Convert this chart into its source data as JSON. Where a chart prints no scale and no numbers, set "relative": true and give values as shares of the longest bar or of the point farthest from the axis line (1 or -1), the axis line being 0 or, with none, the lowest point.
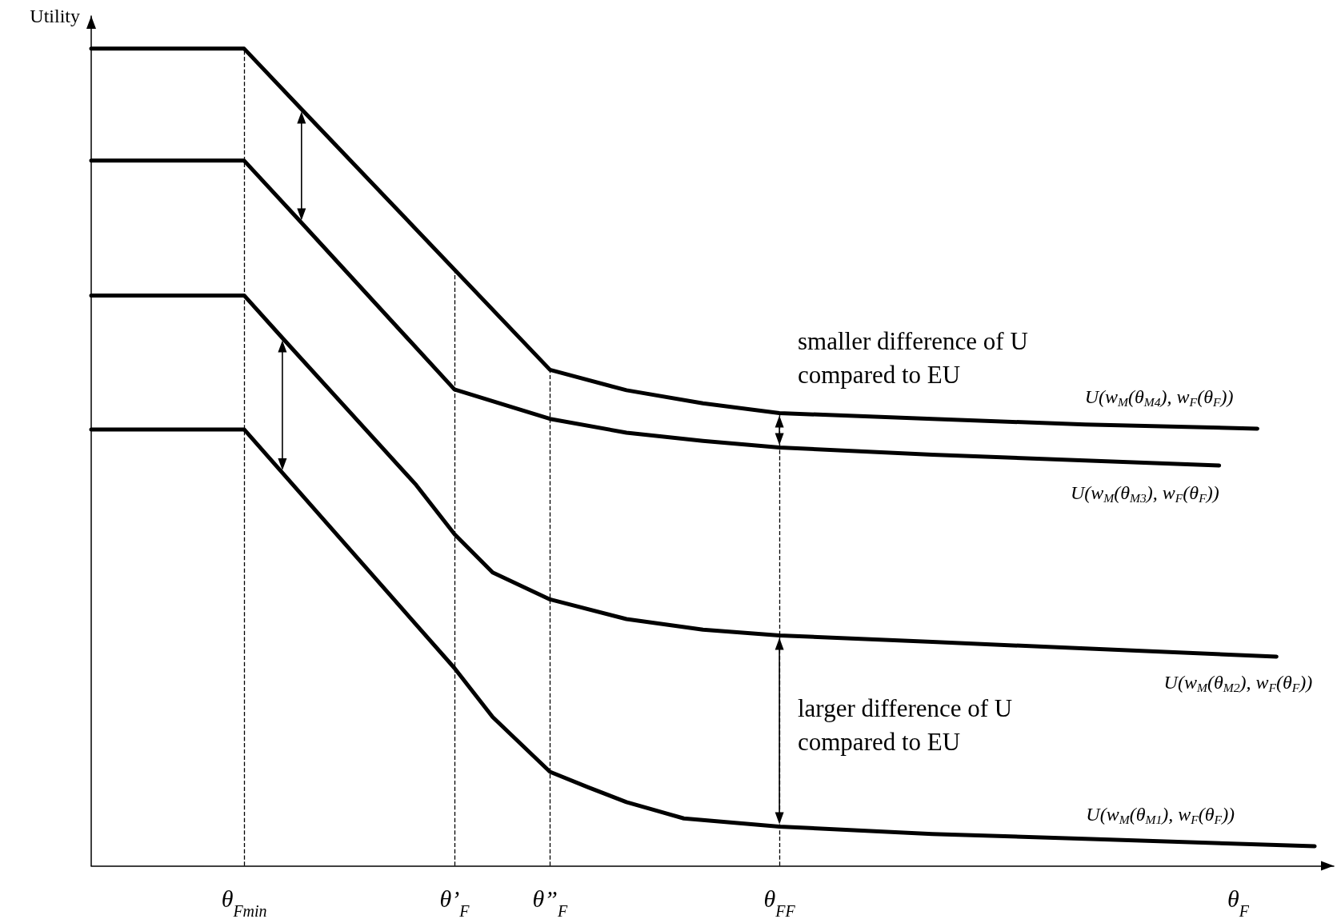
{
  "chart_data": {
    "type": "line",
    "relative": true,
    "ylabel": "Utility",
    "tick_labels": "x",
    "line_style": "solid",
    "categories": [
      null,
      null,
      null,
      null,
      null,
      null,
      null,
      null,
      "θ$_{Fmin}$",
      null,
      null,
      null,
      null,
      null,
      null,
      null,
      null,
      null,
      null,
      "θ’$_{F}$",
      null,
      null,
      null,
      null,
      "θ”$_{F}$",
      null,
      null,
      null,
      null,
      null,
      null,
      null,
      null,
      null,
      null,
      null,
      "θ$_{FF}$",
      null,
      null,
      null,
      null,
      null,
      null,
      null,
      null,
      null,
      null,
      null,
      null,
      null,
      null,
      null,
      null,
      null,
      null,
      null,
      null,
      null,
      null,
      null,
      "θ$_{F}$",
      null,
      null,
      null,
      null,
      null
    ],
    "series": [
      {
        "name": "U(w$_{M}$(θ$_{M4}$), w$_{F}$(θ$_{F}$))",
        "color": "#000000",
        "values": [
          1.0,
          null,
          null,
          null,
          null,
          null,
          null,
          null,
          1.0,
          null,
          null,
          0.926,
          null,
          null,
          null,
          null,
          null,
          null,
          null,
          null,
          null,
          null,
          null,
          null,
          0.607,
          null,
          null,
          null,
          0.582,
          null,
          null,
          null,
          0.566,
          null,
          null,
          null,
          0.554,
          null,
          null,
          null,
          null,
          null,
          null,
          null,
          0.547,
          null,
          null,
          null,
          null,
          null,
          null,
          null,
          0.54,
          null,
          null,
          null,
          null,
          null,
          null,
          null,
          null,
          0.535,
          null,
          null,
          null,
          null
        ]
      },
      {
        "name": "U(w$_{M}$(θ$_{M3}$), w$_{F}$(θ$_{F}$))",
        "color": "#000000",
        "values": [
          0.863,
          null,
          null,
          null,
          null,
          null,
          null,
          null,
          0.863,
          null,
          null,
          0.787,
          null,
          null,
          null,
          null,
          null,
          null,
          null,
          0.583,
          null,
          null,
          null,
          null,
          0.547,
          null,
          null,
          null,
          0.53,
          null,
          null,
          null,
          0.52,
          null,
          null,
          null,
          0.512,
          null,
          null,
          null,
          null,
          null,
          null,
          null,
          0.503,
          null,
          null,
          null,
          null,
          null,
          null,
          null,
          0.496,
          null,
          null,
          null,
          null,
          null,
          null,
          0.49,
          null,
          null,
          null,
          null,
          null,
          null
        ]
      },
      {
        "name": "U(w$_{M}$(θ$_{M2}$), w$_{F}$(θ$_{F}$))",
        "color": "#000000",
        "values": [
          0.698,
          null,
          null,
          null,
          null,
          null,
          null,
          null,
          0.698,
          null,
          0.646,
          null,
          null,
          null,
          null,
          null,
          null,
          0.466,
          null,
          0.406,
          null,
          0.359,
          null,
          null,
          0.326,
          null,
          null,
          null,
          0.302,
          null,
          null,
          null,
          0.289,
          null,
          null,
          null,
          0.282,
          null,
          null,
          null,
          null,
          null,
          null,
          null,
          0.274,
          null,
          null,
          null,
          null,
          null,
          null,
          null,
          0.266,
          null,
          null,
          null,
          null,
          null,
          null,
          null,
          null,
          null,
          0.256,
          null,
          null,
          null
        ]
      },
      {
        "name": "U(w$_{M}$(θ$_{M1}$), w$_{F}$(θ$_{F}$))",
        "color": "#000000",
        "values": [
          0.534,
          null,
          null,
          null,
          null,
          null,
          null,
          null,
          0.534,
          null,
          0.481,
          null,
          null,
          null,
          null,
          null,
          null,
          null,
          null,
          0.242,
          null,
          0.182,
          null,
          null,
          0.115,
          null,
          0.096,
          null,
          0.078,
          null,
          null,
          0.058,
          null,
          null,
          null,
          null,
          0.048,
          null,
          null,
          null,
          null,
          null,
          null,
          null,
          0.039,
          null,
          null,
          null,
          null,
          null,
          null,
          null,
          0.033,
          null,
          null,
          null,
          null,
          null,
          null,
          null,
          null,
          null,
          null,
          null,
          0.024,
          null
        ]
      }
    ],
    "ref_lines": [
      {
        "axis": "x",
        "value": "θ$_{Fmin}$",
        "line_style": "dashed"
      },
      {
        "axis": "x",
        "value": "θ’$_{F}$",
        "line_style": "dashed"
      },
      {
        "axis": "x",
        "value": "θ”$_{F}$",
        "line_style": "dashed"
      },
      {
        "axis": "x",
        "value": "θ$_{FF}$",
        "line_style": "dashed"
      }
    ],
    "annotations": [
      "smaller difference of U compared to EU",
      "larger difference of U compared to EU"
    ]
  }
}
